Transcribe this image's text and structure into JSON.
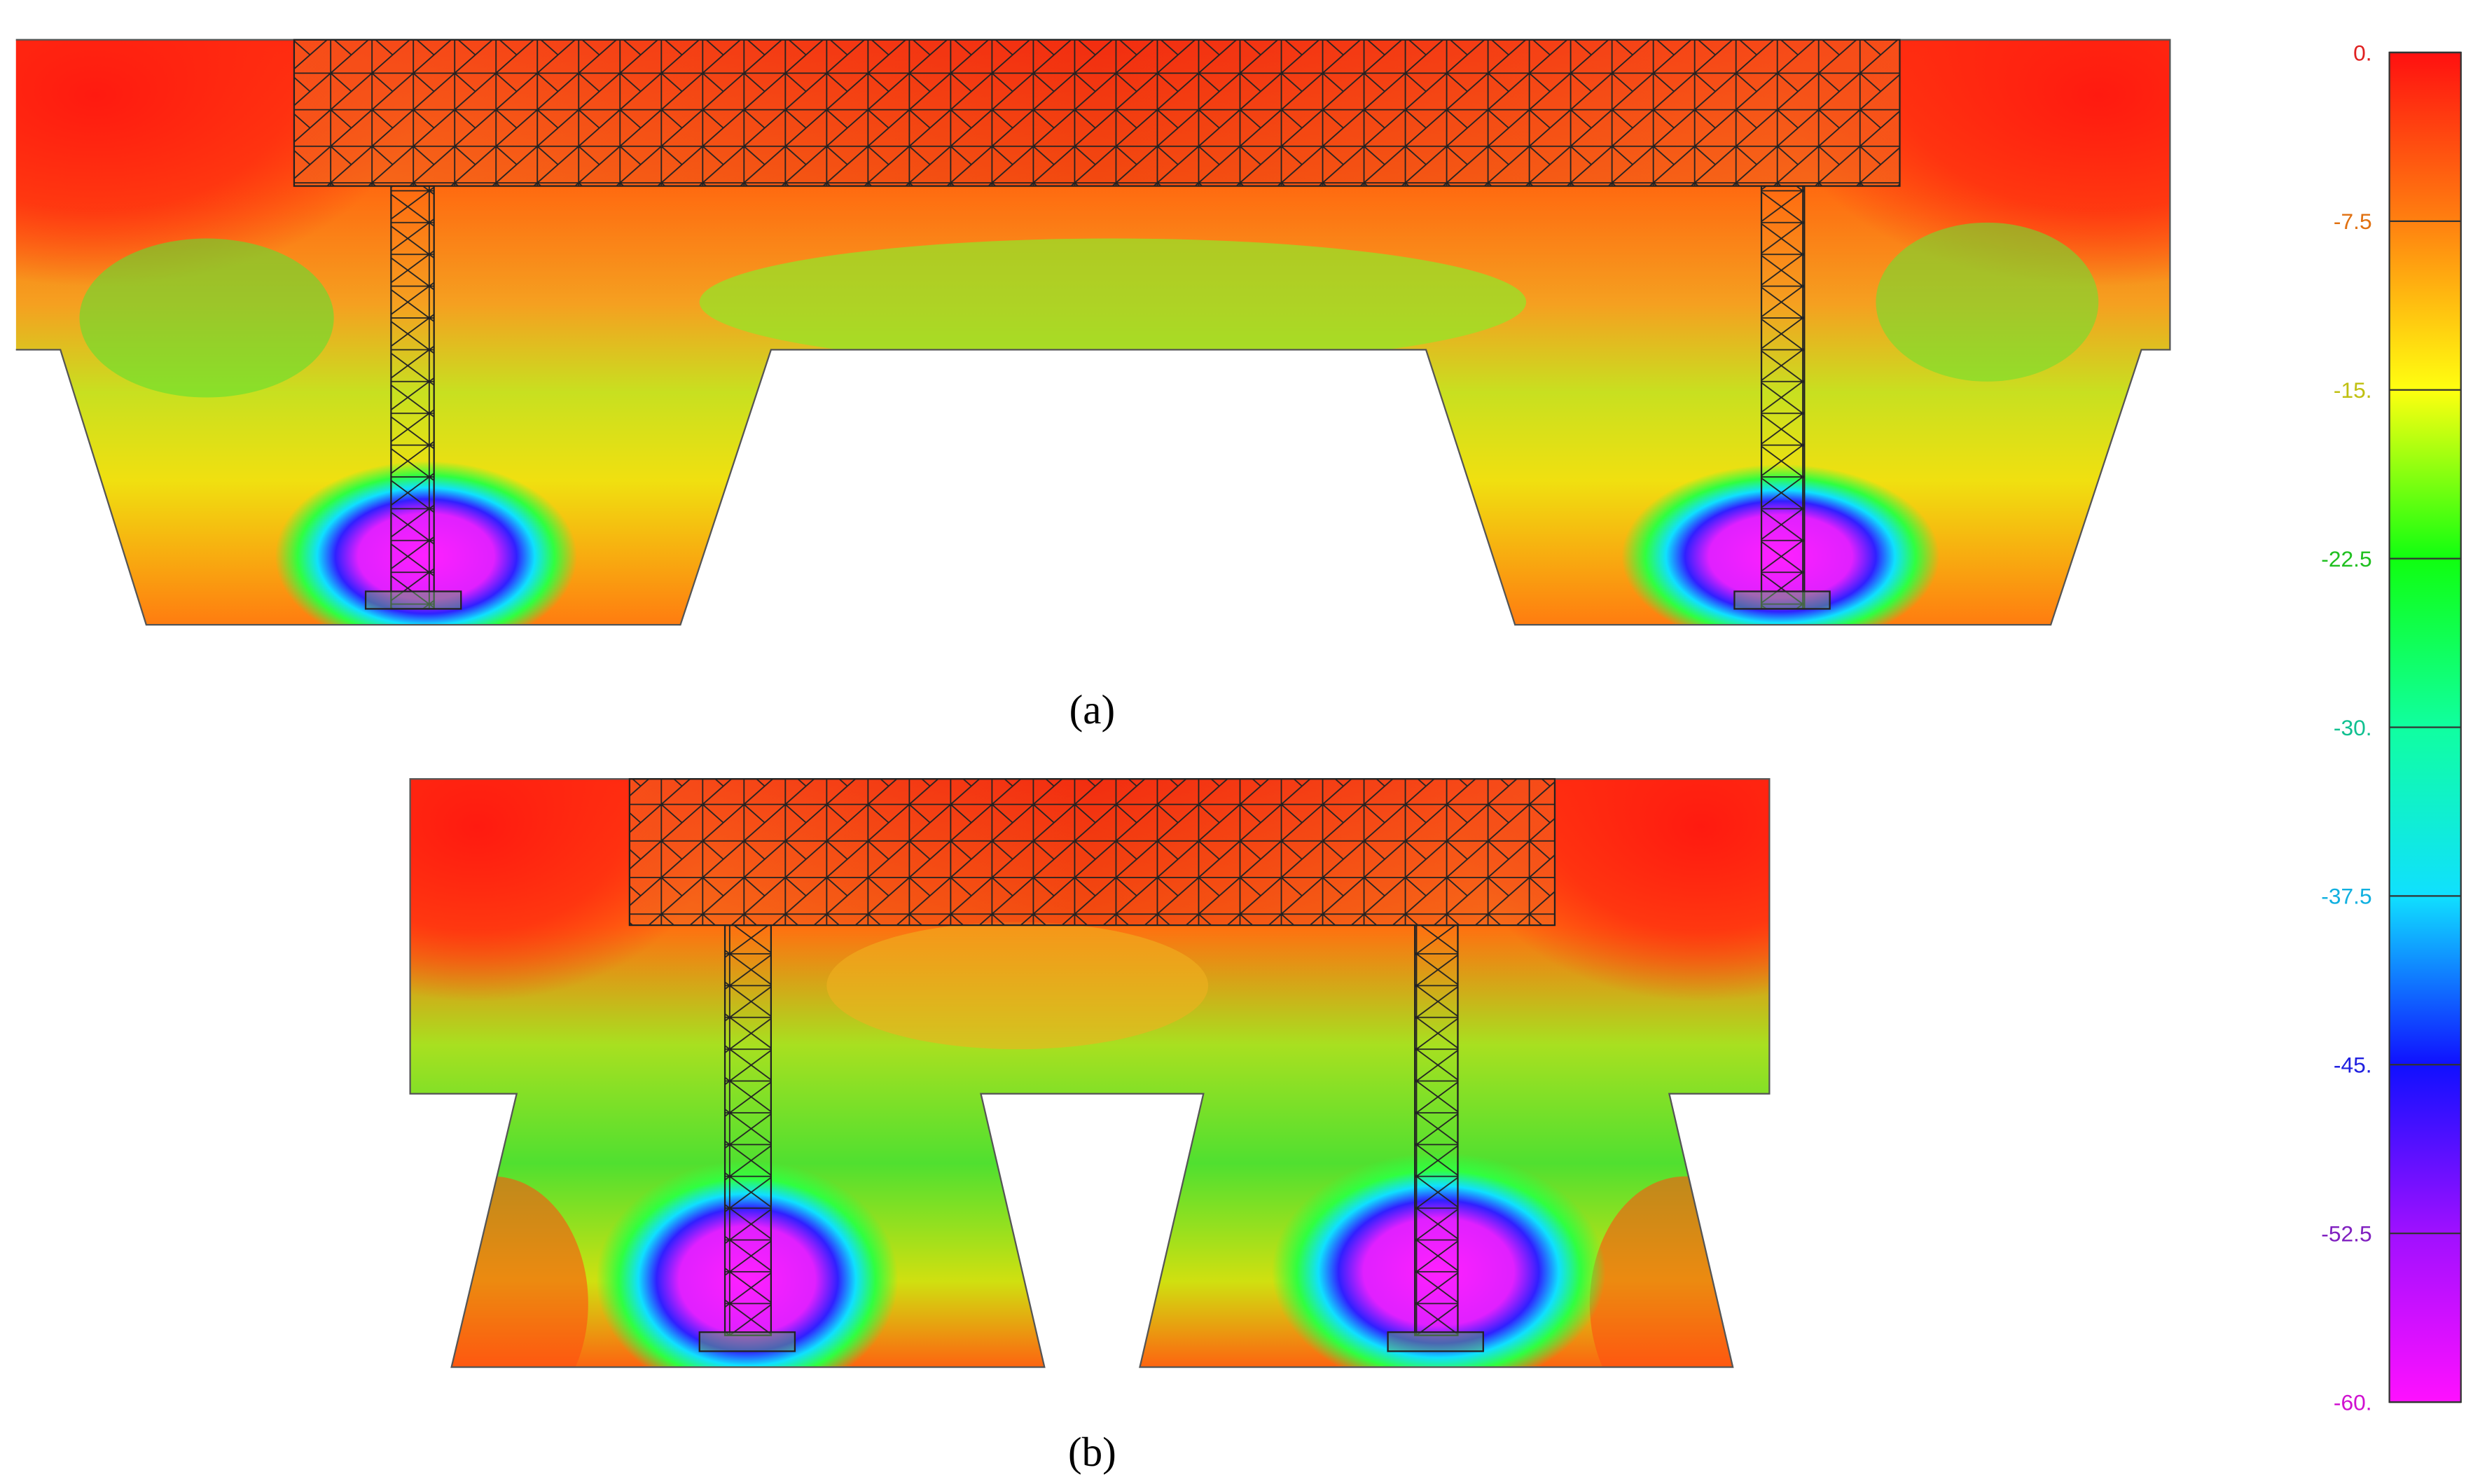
{
  "panels": [
    {
      "label": "(a)"
    },
    {
      "label": "(b)"
    }
  ],
  "colorbar": {
    "ticks": [
      "0.",
      "-7.5",
      "-15.",
      "-22.5",
      "-30.",
      "-37.5",
      "-45.",
      "-52.5",
      "-60."
    ]
  }
}
